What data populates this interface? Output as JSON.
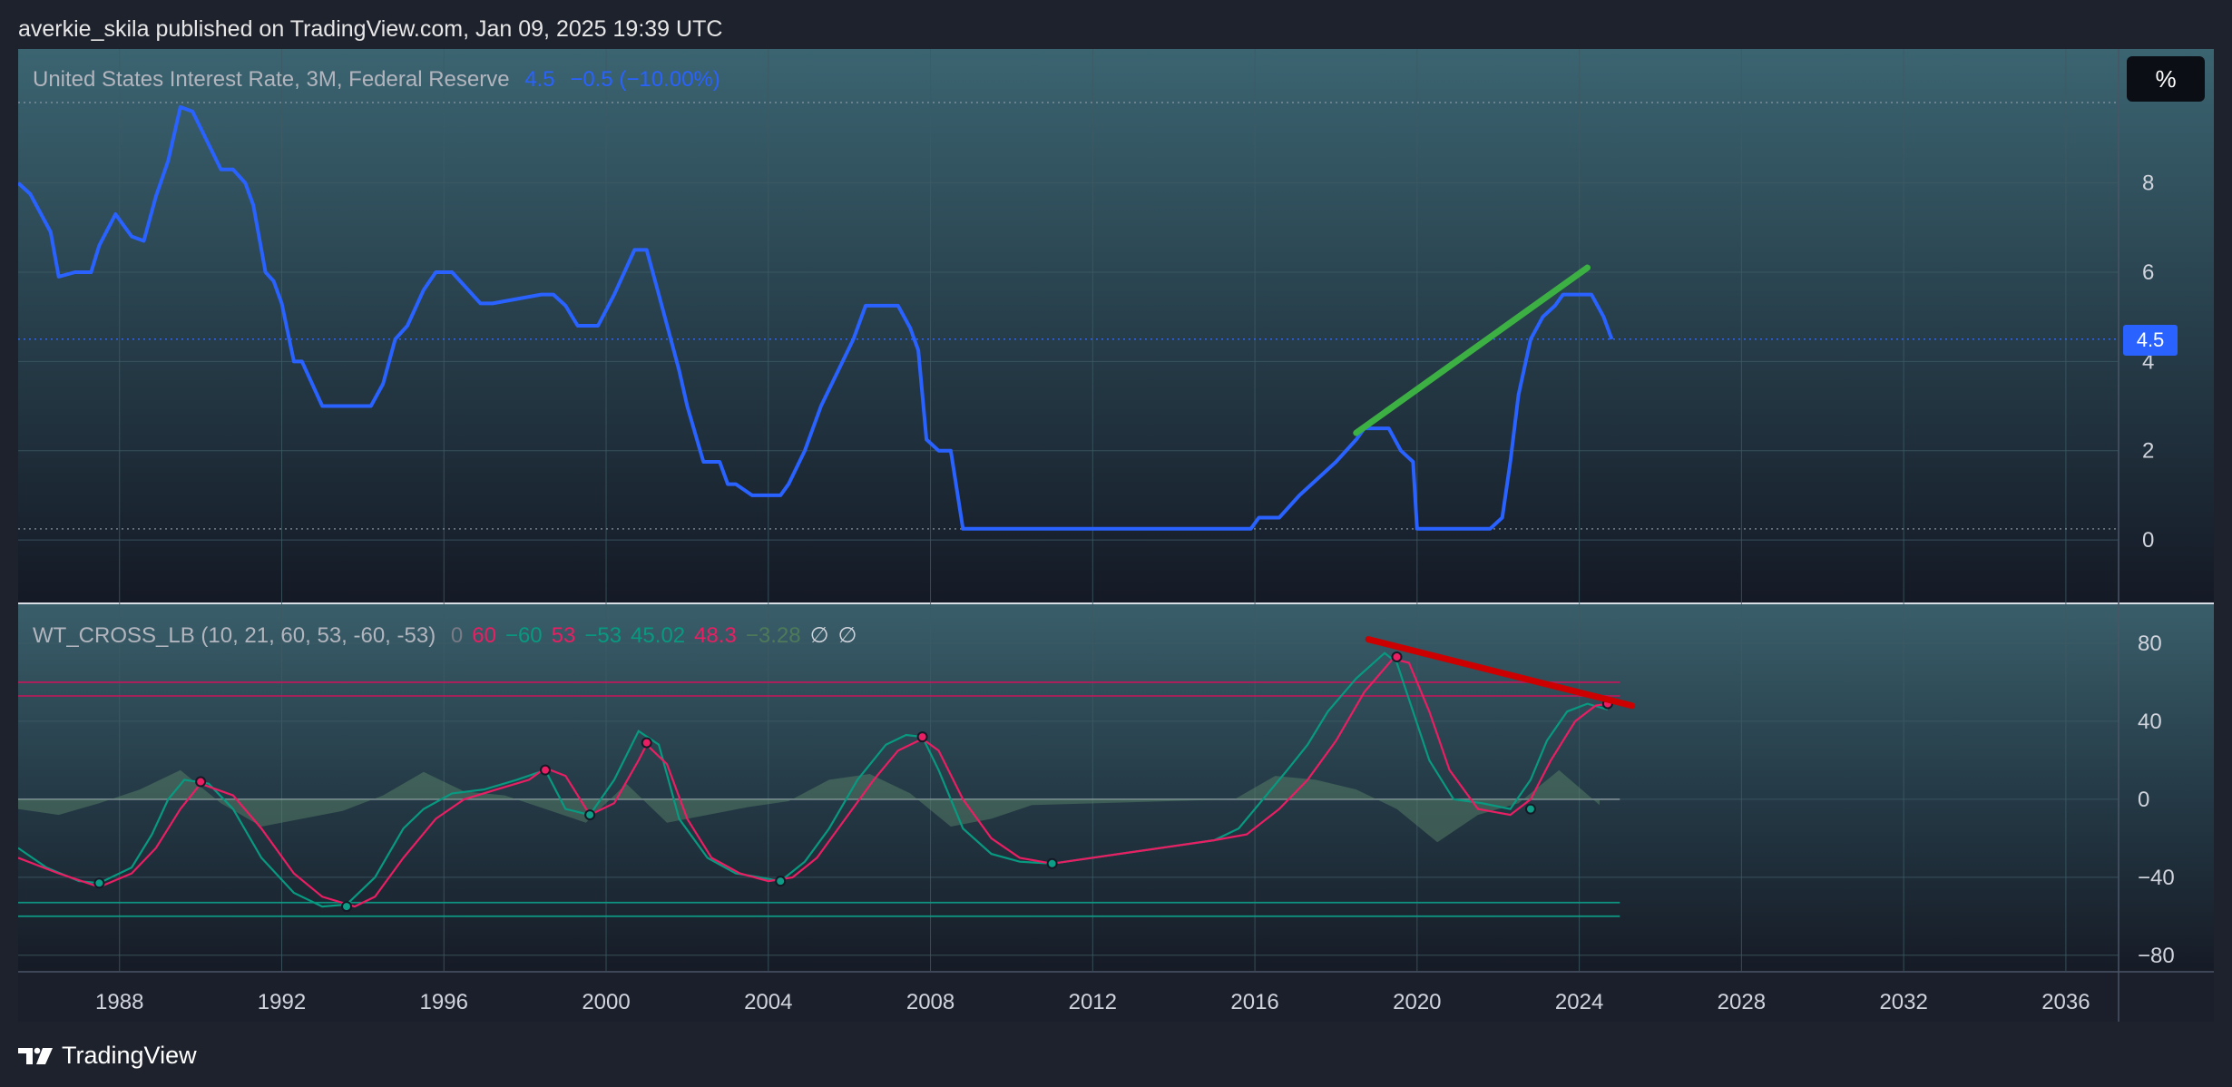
{
  "header": {
    "publisher_line": "averkie_skila published on TradingView.com, Jan 09, 2025 19:39 UTC"
  },
  "price_pane": {
    "title": "United States Interest Rate, 3M, Federal Reserve",
    "value": "4.5",
    "change": "−0.5 (−10.00%)",
    "unit_button": "%",
    "price_tag": "4.5",
    "y_ticks": [
      "8",
      "6",
      "4",
      "2",
      "0"
    ]
  },
  "indicator_pane": {
    "title": "WT_CROSS_LB (10, 21, 60, 53, -60, -53)",
    "values": [
      {
        "text": "0",
        "color": "#787b86"
      },
      {
        "text": "60",
        "color": "#e91e63"
      },
      {
        "text": "−60",
        "color": "#089981"
      },
      {
        "text": "53",
        "color": "#e91e63"
      },
      {
        "text": "−53",
        "color": "#089981"
      },
      {
        "text": "45.02",
        "color": "#089981"
      },
      {
        "text": "48.3",
        "color": "#e91e63"
      },
      {
        "text": "−3.28",
        "color": "#4e7a5a"
      },
      {
        "text": "∅",
        "color": "#d1d4dc"
      },
      {
        "text": "∅",
        "color": "#d1d4dc"
      }
    ],
    "y_ticks": [
      "80",
      "40",
      "0",
      "−40",
      "−80"
    ]
  },
  "x_ticks": [
    "1988",
    "1992",
    "1996",
    "2000",
    "2004",
    "2008",
    "2012",
    "2016",
    "2020",
    "2024",
    "2028",
    "2032",
    "2036"
  ],
  "footer": {
    "brand": "TradingView"
  },
  "colors": {
    "rate_line": "#2962ff",
    "trend_up": "#3cb043",
    "trend_down": "#cc0000",
    "wt1": "#089981",
    "wt2": "#e91e63",
    "background": "#1e222d"
  },
  "chart_data": [
    {
      "type": "line",
      "title": "United States Interest Rate, 3M, Federal Reserve",
      "series": [
        {
          "name": "United States Interest Rate",
          "x": [
            1985.5,
            1985.8,
            1986.3,
            1986.5,
            1986.9,
            1987.3,
            1987.5,
            1987.9,
            1988.3,
            1988.6,
            1988.9,
            1989.2,
            1989.5,
            1989.8,
            1990.5,
            1990.8,
            1991.1,
            1991.3,
            1991.6,
            1991.8,
            1992.0,
            1992.3,
            1992.5,
            1993.0,
            1994.2,
            1994.5,
            1994.8,
            1995.1,
            1995.5,
            1995.8,
            1996.2,
            1996.9,
            1997.2,
            1998.4,
            1998.7,
            1999.0,
            1999.3,
            1999.8,
            2000.2,
            2000.7,
            2001.0,
            2001.3,
            2001.8,
            2002.0,
            2002.4,
            2002.8,
            2003.0,
            2003.2,
            2003.6,
            2004.3,
            2004.5,
            2004.9,
            2005.3,
            2006.1,
            2006.4,
            2007.2,
            2007.5,
            2007.7,
            2007.9,
            2008.2,
            2008.5,
            2008.8,
            2008.9,
            2015.9,
            2016.1,
            2016.6,
            2017.1,
            2017.4,
            2018.0,
            2018.5,
            2018.7,
            2019.3,
            2019.6,
            2019.9,
            2020.0,
            2021.8,
            2022.1,
            2022.3,
            2022.5,
            2022.8,
            2023.1,
            2023.4,
            2023.6,
            2024.3,
            2024.6,
            2024.8
          ],
          "values": [
            8,
            7.75,
            6.9,
            5.9,
            6,
            6,
            6.6,
            7.3,
            6.8,
            6.7,
            7.7,
            8.5,
            9.7,
            9.6,
            8.3,
            8.3,
            8,
            7.5,
            6,
            5.8,
            5.3,
            4,
            4,
            3,
            3,
            3.5,
            4.5,
            4.8,
            5.6,
            6,
            6,
            5.3,
            5.3,
            5.5,
            5.5,
            5.25,
            4.8,
            4.8,
            5.5,
            6.5,
            6.5,
            5.5,
            3.8,
            3,
            1.75,
            1.75,
            1.25,
            1.25,
            1,
            1,
            1.25,
            2,
            3,
            4.5,
            5.25,
            5.25,
            4.75,
            4.25,
            2.25,
            2,
            2,
            0.25,
            0.25,
            0.25,
            0.5,
            0.5,
            1,
            1.25,
            1.75,
            2.25,
            2.5,
            2.5,
            2,
            1.75,
            0.25,
            0.25,
            0.5,
            1.75,
            3.25,
            4.5,
            5,
            5.25,
            5.5,
            5.5,
            5,
            4.5
          ]
        }
      ],
      "trendline": {
        "x": [
          2018.5,
          2024.2
        ],
        "values": [
          2.4,
          6.1
        ]
      },
      "ylim": [
        -1.4,
        11
      ]
    },
    {
      "type": "line",
      "title": "WT_CROSS_LB (10, 21, 60, 53, -60, -53)",
      "levels": [
        60,
        53,
        -53,
        -60,
        0
      ],
      "series": [
        {
          "name": "wt1",
          "x": [
            1985.5,
            1986.2,
            1987.0,
            1987.5,
            1988.3,
            1988.8,
            1989.2,
            1989.6,
            1990.2,
            1990.8,
            1991.5,
            1992.3,
            1993.0,
            1993.6,
            1994.3,
            1995.0,
            1995.5,
            1996.2,
            1997.0,
            1997.8,
            1998.5,
            1999.0,
            1999.6,
            2000.2,
            2000.8,
            2001.3,
            2001.8,
            2002.5,
            2003.2,
            2003.8,
            2004.3,
            2004.9,
            2005.5,
            2006.2,
            2006.9,
            2007.4,
            2007.8,
            2008.2,
            2008.8,
            2009.5,
            2010.2,
            2011.0,
            2013.0,
            2015.0,
            2015.6,
            2016.2,
            2016.8,
            2017.3,
            2017.8,
            2018.5,
            2019.2,
            2019.5,
            2019.9,
            2020.3,
            2020.9,
            2021.6,
            2022.3,
            2022.8,
            2023.2,
            2023.7,
            2024.2,
            2024.7
          ],
          "values": [
            -25,
            -35,
            -42,
            -43,
            -35,
            -18,
            0,
            10,
            8,
            -5,
            -30,
            -48,
            -55,
            -54,
            -40,
            -15,
            -5,
            3,
            5,
            10,
            15,
            -5,
            -8,
            10,
            35,
            28,
            -10,
            -30,
            -38,
            -40,
            -42,
            -32,
            -15,
            10,
            28,
            33,
            32,
            15,
            -15,
            -28,
            -32,
            -33,
            -27,
            -21,
            -15,
            0,
            15,
            28,
            45,
            62,
            75,
            70,
            45,
            20,
            0,
            -2,
            -5,
            10,
            30,
            45,
            49,
            46
          ]
        },
        {
          "name": "wt2",
          "x": [
            1985.5,
            1986.5,
            1987.5,
            1988.3,
            1988.9,
            1989.5,
            1990.0,
            1990.8,
            1991.5,
            1992.3,
            1993.0,
            1993.8,
            1994.3,
            1995.0,
            1995.8,
            1996.5,
            1997.3,
            1998.1,
            1998.5,
            1999.0,
            1999.6,
            2000.2,
            2000.8,
            2001.0,
            2001.5,
            2002.0,
            2002.6,
            2003.3,
            2004.0,
            2004.6,
            2005.2,
            2005.9,
            2006.6,
            2007.2,
            2007.8,
            2008.2,
            2008.8,
            2009.5,
            2010.2,
            2011.0,
            2013.0,
            2015.0,
            2015.8,
            2016.6,
            2017.3,
            2018.0,
            2018.7,
            2019.4,
            2019.8,
            2020.3,
            2020.8,
            2021.5,
            2022.3,
            2022.8,
            2023.3,
            2023.9,
            2024.4,
            2024.7
          ],
          "values": [
            -30,
            -38,
            -45,
            -38,
            -25,
            -5,
            8,
            2,
            -15,
            -38,
            -50,
            -55,
            -50,
            -30,
            -10,
            0,
            5,
            10,
            16,
            12,
            -8,
            -2,
            20,
            28,
            18,
            -10,
            -30,
            -38,
            -42,
            -40,
            -30,
            -10,
            10,
            25,
            31,
            25,
            0,
            -20,
            -30,
            -33,
            -27,
            -21,
            -18,
            -5,
            10,
            30,
            55,
            72,
            70,
            45,
            15,
            -5,
            -8,
            0,
            20,
            40,
            48,
            49
          ]
        },
        {
          "name": "histogram",
          "x": [
            1985.5,
            1986.5,
            1987.5,
            1988.5,
            1989.5,
            1990.5,
            1991.5,
            1992.5,
            1993.5,
            1994.5,
            1995.5,
            1996.5,
            1997.5,
            1998.5,
            1999.5,
            2000.5,
            2001.5,
            2002.5,
            2003.5,
            2004.5,
            2005.5,
            2006.5,
            2007.5,
            2008.5,
            2009.5,
            2010.5,
            2015.5,
            2016.5,
            2017.5,
            2018.5,
            2019.5,
            2020.5,
            2021.5,
            2022.5,
            2023.5,
            2024.5
          ],
          "values": [
            -5,
            -8,
            -2,
            5,
            15,
            -2,
            -14,
            -10,
            -6,
            2,
            14,
            4,
            2,
            -5,
            -12,
            8,
            -12,
            -8,
            -4,
            -1,
            10,
            13,
            3,
            -14,
            -10,
            -3,
            0,
            12,
            10,
            5,
            -5,
            -22,
            -8,
            -2,
            15,
            -3
          ]
        }
      ],
      "ylim": [
        -88,
        100
      ]
    }
  ]
}
